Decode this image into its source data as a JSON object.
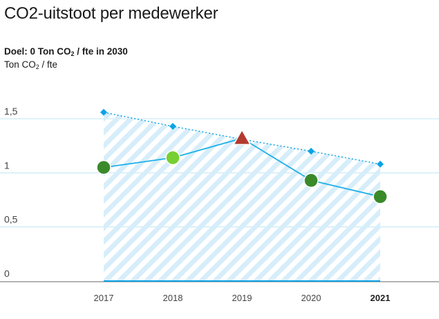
{
  "header": {
    "title": "CO2-uitstoot per medewerker",
    "goal_prefix": "Doel: 0 Ton CO",
    "goal_sub": "2",
    "goal_suffix": " / fte in 2030",
    "unit_prefix": "Ton CO",
    "unit_sub": "2",
    "unit_suffix": " / fte"
  },
  "chart_data": {
    "type": "line",
    "categories": [
      "2017",
      "2018",
      "2019",
      "2020",
      "2021"
    ],
    "highlight_category": "2021",
    "ylim": [
      0,
      1.5
    ],
    "yticks": [
      {
        "value": 0,
        "label": "0"
      },
      {
        "value": 0.5,
        "label": "0,5"
      },
      {
        "value": 1,
        "label": "1"
      },
      {
        "value": 1.5,
        "label": "1,5"
      }
    ],
    "grid": true,
    "series": [
      {
        "role": "target",
        "style": "dotted-line-with-diamonds-and-hatched-area",
        "color": "#0aa3e6",
        "values": [
          1.56,
          1.43,
          1.31,
          1.2,
          1.08
        ]
      },
      {
        "role": "actual",
        "style": "solid-line-with-markers",
        "color": "#1bb0e8",
        "values": [
          1.05,
          1.14,
          1.32,
          0.93,
          0.78
        ],
        "markers": [
          {
            "shape": "circle",
            "color": "#3a8a2a"
          },
          {
            "shape": "circle",
            "color": "#76d032"
          },
          {
            "shape": "triangle",
            "color": "#b23a2e"
          },
          {
            "shape": "circle",
            "color": "#3a8a2a"
          },
          {
            "shape": "circle",
            "color": "#3a8a2a"
          }
        ]
      }
    ],
    "colors": {
      "grid": "#bfe4f4",
      "baseline": "#0aa3e6",
      "axis": "#9a9a9a",
      "hatch": "#d7eefa"
    }
  }
}
